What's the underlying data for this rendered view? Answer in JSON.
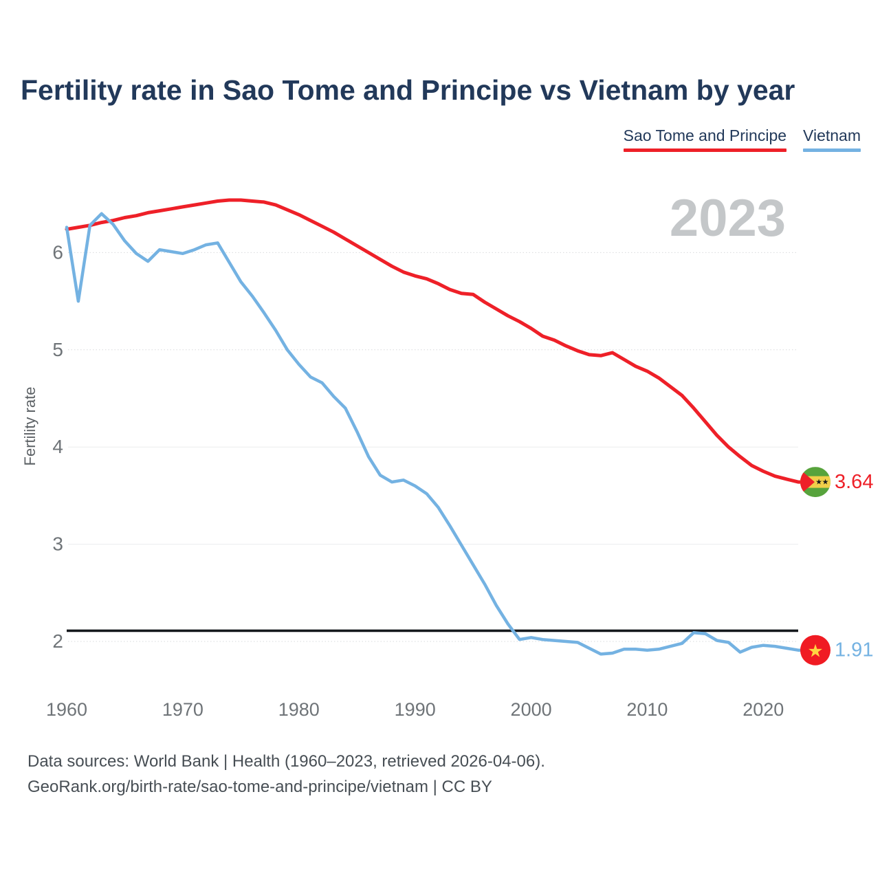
{
  "title": "Fertility rate in Sao Tome and Principe vs Vietnam by year",
  "watermark": "2023",
  "legend": [
    {
      "label": "Sao Tome and Principe",
      "color": "#ee2028"
    },
    {
      "label": "Vietnam",
      "color": "#74b2e2"
    }
  ],
  "y_axis": {
    "label": "Fertility rate",
    "ticks": [
      6,
      5,
      4,
      3,
      2
    ]
  },
  "x_axis": {
    "ticks": [
      1960,
      1970,
      1980,
      1990,
      2000,
      2010,
      2020
    ]
  },
  "reference_line": {
    "value": 2.11,
    "color": "#14181c"
  },
  "chart_data": {
    "type": "line",
    "title": "Fertility rate in Sao Tome and Principe vs Vietnam by year",
    "xlabel": "",
    "ylabel": "Fertility rate",
    "xlim": [
      1960,
      2023
    ],
    "ylim": [
      1.7,
      6.7
    ],
    "grid": "horizontal",
    "legend_position": "top-right",
    "x_start_year": 1960,
    "series": [
      {
        "name": "Sao Tome and Principe",
        "color": "#ee2028",
        "end_label": "3.64",
        "end_value": 3.64,
        "flag": "sao-tome",
        "values": [
          6.24,
          6.26,
          6.28,
          6.31,
          6.33,
          6.36,
          6.38,
          6.41,
          6.43,
          6.45,
          6.47,
          6.49,
          6.51,
          6.53,
          6.54,
          6.54,
          6.53,
          6.52,
          6.49,
          6.44,
          6.39,
          6.33,
          6.27,
          6.21,
          6.14,
          6.07,
          6.0,
          5.93,
          5.86,
          5.8,
          5.76,
          5.73,
          5.68,
          5.62,
          5.58,
          5.57,
          5.49,
          5.42,
          5.35,
          5.29,
          5.22,
          5.14,
          5.1,
          5.04,
          4.99,
          4.95,
          4.94,
          4.97,
          4.9,
          4.83,
          4.78,
          4.71,
          4.62,
          4.53,
          4.4,
          4.26,
          4.12,
          4.0,
          3.9,
          3.81,
          3.75,
          3.7,
          3.67,
          3.64
        ]
      },
      {
        "name": "Vietnam",
        "color": "#74b2e2",
        "end_label": "1.91",
        "end_value": 1.91,
        "flag": "vietnam",
        "values": [
          6.26,
          5.5,
          6.28,
          6.4,
          6.29,
          6.12,
          5.99,
          5.91,
          6.03,
          6.01,
          5.99,
          6.03,
          6.08,
          6.1,
          5.9,
          5.7,
          5.55,
          5.38,
          5.2,
          5.0,
          4.85,
          4.72,
          4.66,
          4.52,
          4.4,
          4.16,
          3.9,
          3.71,
          3.64,
          3.66,
          3.6,
          3.52,
          3.38,
          3.19,
          2.99,
          2.79,
          2.59,
          2.37,
          2.18,
          2.02,
          2.04,
          2.02,
          2.01,
          2.0,
          1.99,
          1.93,
          1.87,
          1.88,
          1.92,
          1.92,
          1.91,
          1.92,
          1.95,
          1.98,
          2.09,
          2.08,
          2.01,
          1.99,
          1.89,
          1.94,
          1.96,
          1.95,
          1.93,
          1.91
        ]
      }
    ],
    "flag_colors": {
      "sao_tome_green": "#57a33c",
      "sao_tome_yellow": "#f0cf4a",
      "sao_tome_red": "#ee2028",
      "sao_tome_star": "#15181b",
      "vietnam_red": "#f01b23",
      "vietnam_star": "#ffd542"
    }
  },
  "footer": {
    "line1": "Data sources: World Bank | Health (1960–2023, retrieved 2026-04-06).",
    "line2": "GeoRank.org/birth-rate/sao-tome-and-principe/vietnam | CC BY"
  }
}
